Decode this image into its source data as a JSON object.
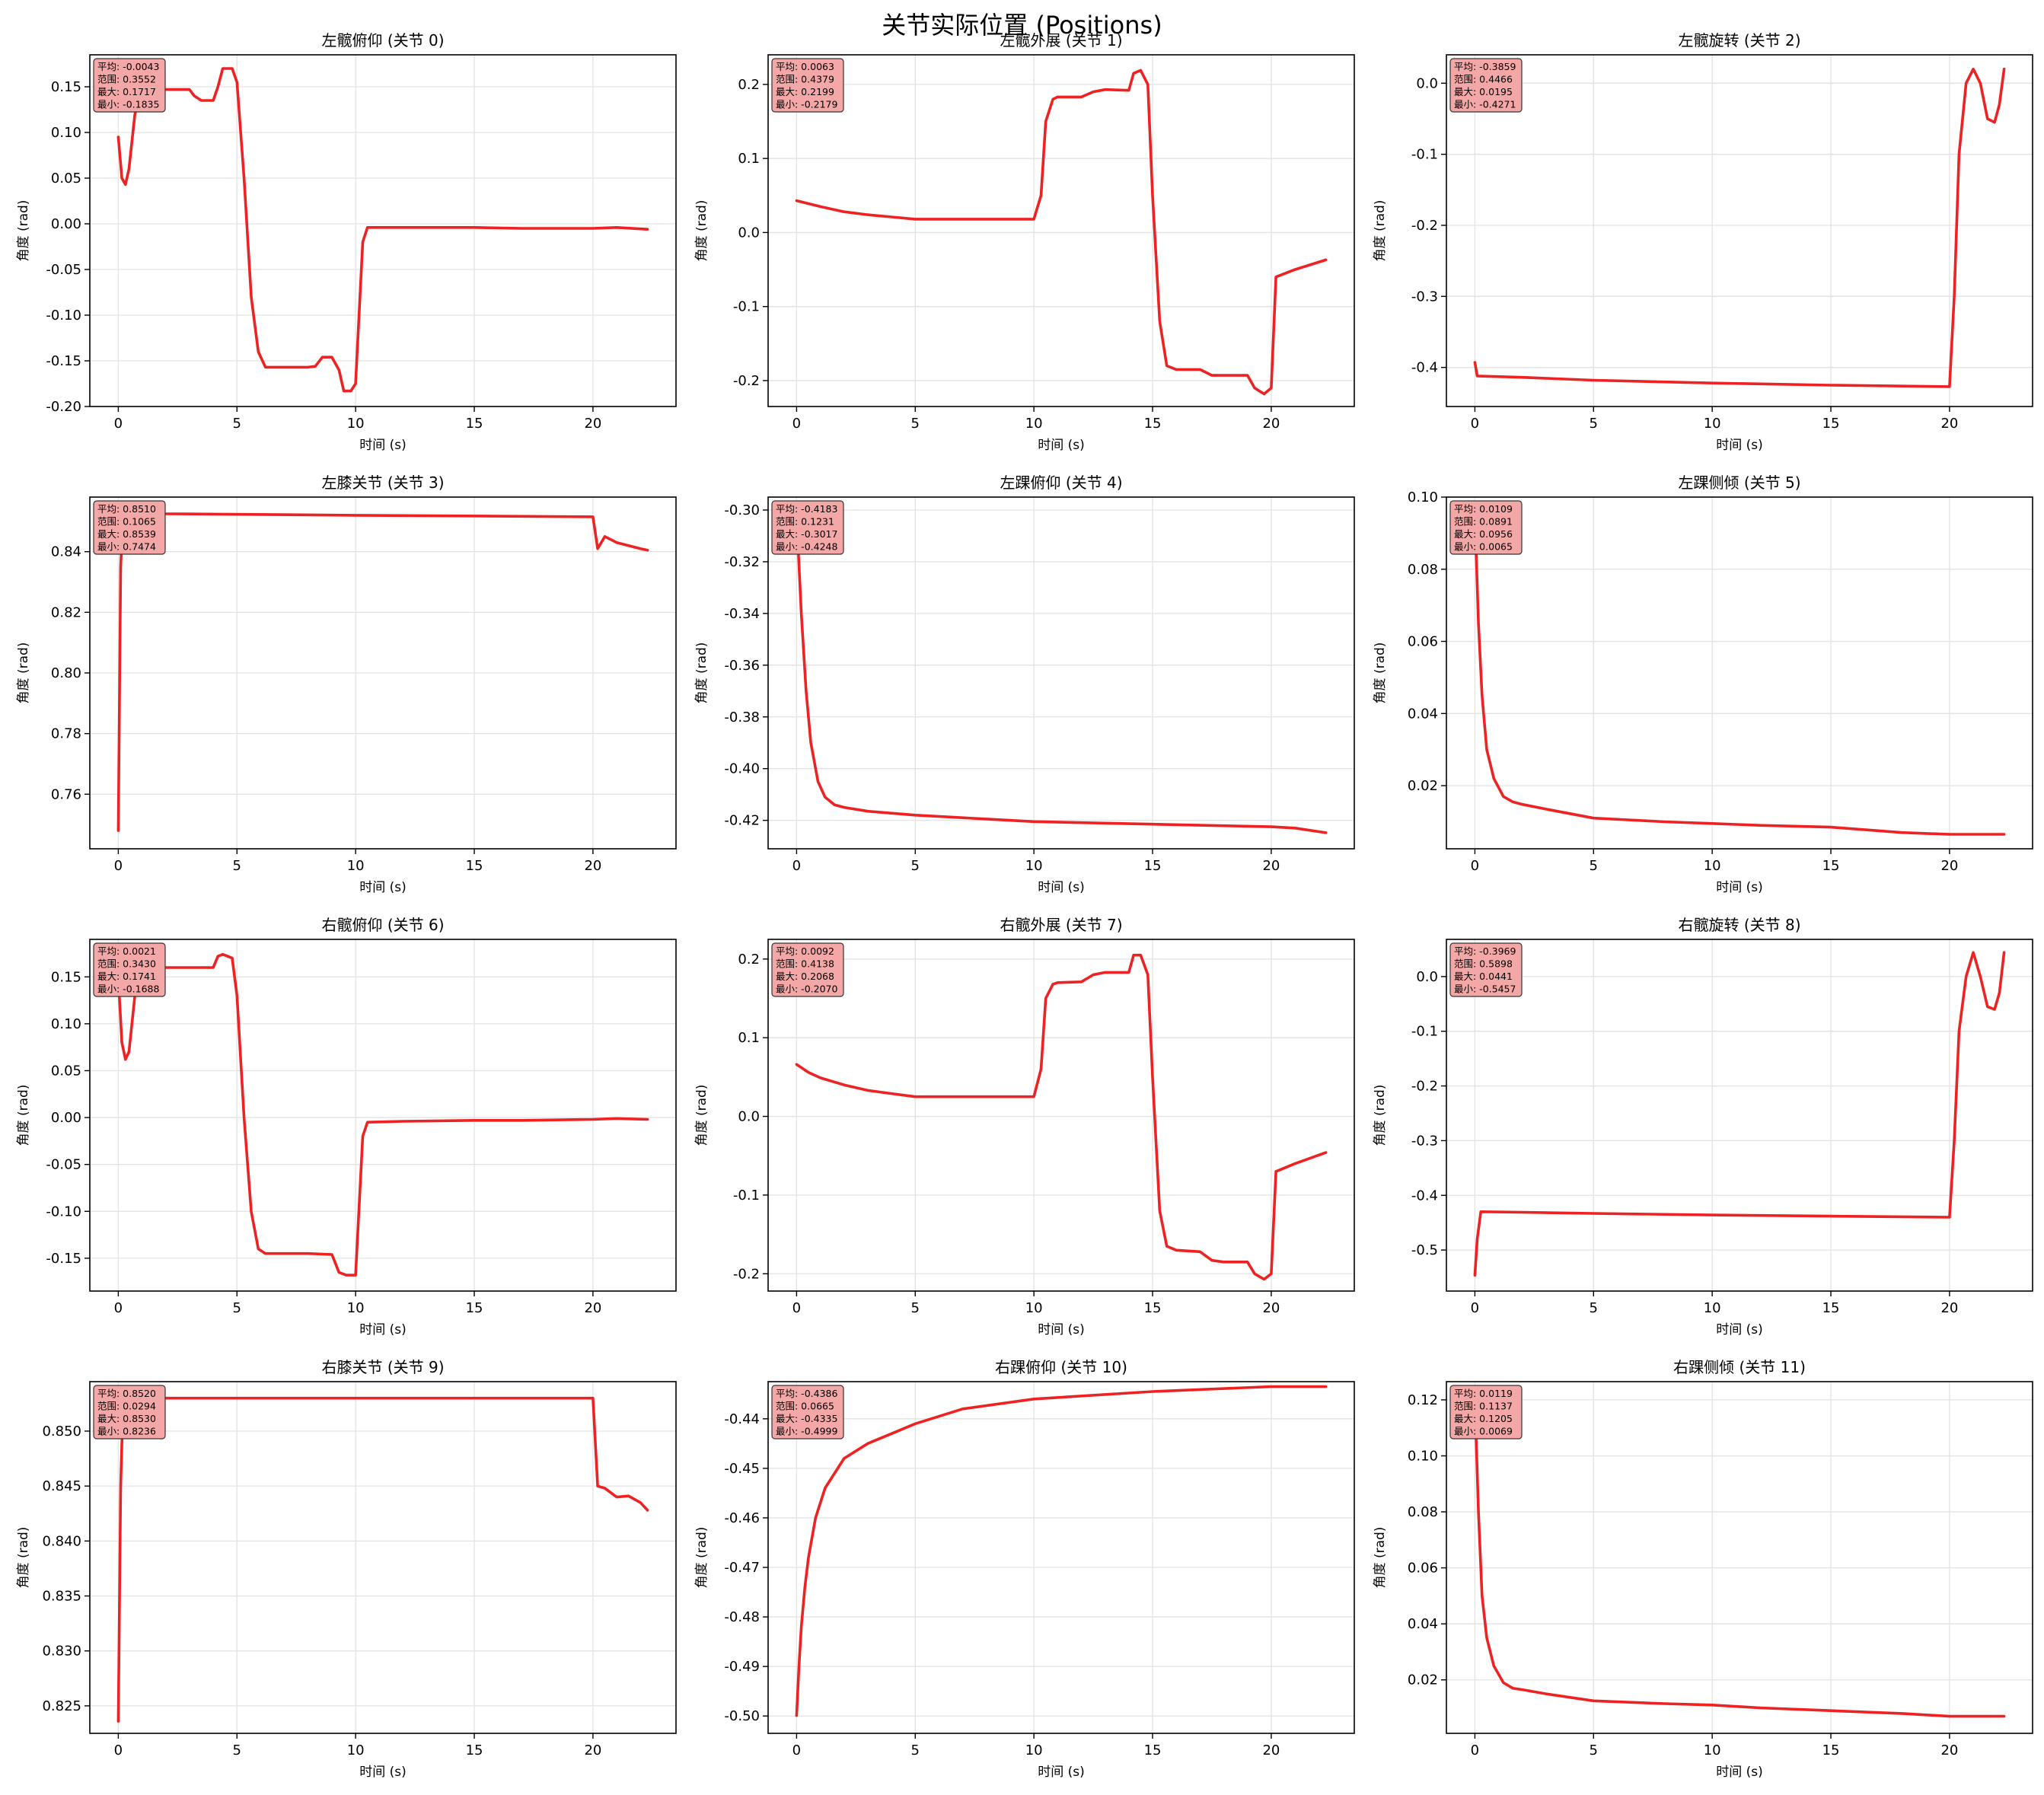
{
  "suptitle": "关节实际位置 (Positions)",
  "colors": {
    "line": "#ee2222",
    "stats_box": "#f4a7a7",
    "grid": "#e3e3e3"
  },
  "chart_data": [
    {
      "type": "line",
      "title": "左髋俯仰 (关节 0)",
      "xlabel": "时间 (s)",
      "ylabel": "角度 (rad)",
      "xlim": [
        -1.2,
        23.5
      ],
      "ylim": [
        -0.2,
        0.185
      ],
      "xticks": [
        0,
        5,
        10,
        15,
        20
      ],
      "xtick_labels": [
        "0",
        "5",
        "10",
        "15",
        "20"
      ],
      "yticks": [
        -0.2,
        -0.15,
        -0.1,
        -0.05,
        0,
        0.05,
        0.1,
        0.15
      ],
      "ytick_labels": [
        "-0.20",
        "-0.15",
        "-0.10",
        "-0.05",
        "0.00",
        "0.05",
        "0.10",
        "0.15"
      ],
      "stats": [
        "平均: -0.0043",
        "范围: 0.3552",
        "最大: 0.1717",
        "最小: -0.1835"
      ],
      "x": [
        0,
        0.15,
        0.3,
        0.45,
        0.7,
        1,
        1.5,
        2,
        2.5,
        3,
        3.2,
        3.5,
        4,
        4.2,
        4.4,
        4.8,
        5,
        5.3,
        5.6,
        5.9,
        6.2,
        7,
        8,
        8.3,
        8.6,
        9,
        9.3,
        9.5,
        9.8,
        10,
        10.3,
        10.5,
        12,
        15,
        17,
        20,
        21,
        22.3
      ],
      "y": [
        0.095,
        0.05,
        0.043,
        0.06,
        0.12,
        0.145,
        0.146,
        0.147,
        0.147,
        0.147,
        0.14,
        0.135,
        0.135,
        0.15,
        0.17,
        0.17,
        0.155,
        0.05,
        -0.08,
        -0.14,
        -0.157,
        -0.157,
        -0.157,
        -0.156,
        -0.146,
        -0.146,
        -0.16,
        -0.183,
        -0.183,
        -0.175,
        -0.02,
        -0.004,
        -0.004,
        -0.004,
        -0.005,
        -0.005,
        -0.004,
        -0.006
      ]
    },
    {
      "type": "line",
      "title": "左髋外展 (关节 1)",
      "xlabel": "时间 (s)",
      "ylabel": "角度 (rad)",
      "xlim": [
        -1.2,
        23.5
      ],
      "ylim": [
        -0.235,
        0.24
      ],
      "xticks": [
        0,
        5,
        10,
        15,
        20
      ],
      "xtick_labels": [
        "0",
        "5",
        "10",
        "15",
        "20"
      ],
      "yticks": [
        -0.2,
        -0.1,
        0,
        0.1,
        0.2
      ],
      "ytick_labels": [
        "-0.2",
        "-0.1",
        "0.0",
        "0.1",
        "0.2"
      ],
      "stats": [
        "平均: 0.0063",
        "范围: 0.4379",
        "最大: 0.2199",
        "最小: -0.2179"
      ],
      "x": [
        0,
        1,
        2,
        3,
        4,
        5,
        6,
        8,
        10,
        10.3,
        10.5,
        10.8,
        11,
        12,
        12.5,
        13,
        14,
        14.2,
        14.5,
        14.8,
        15,
        15.3,
        15.6,
        16,
        17,
        17.5,
        18,
        19,
        19.3,
        19.7,
        20,
        20.2,
        21,
        22.3
      ],
      "y": [
        0.043,
        0.035,
        0.028,
        0.024,
        0.021,
        0.018,
        0.018,
        0.018,
        0.018,
        0.05,
        0.15,
        0.18,
        0.183,
        0.183,
        0.19,
        0.193,
        0.192,
        0.215,
        0.219,
        0.2,
        0.05,
        -0.12,
        -0.18,
        -0.185,
        -0.185,
        -0.193,
        -0.193,
        -0.193,
        -0.21,
        -0.218,
        -0.21,
        -0.06,
        -0.05,
        -0.037
      ]
    },
    {
      "type": "line",
      "title": "左髋旋转 (关节 2)",
      "xlabel": "时间 (s)",
      "ylabel": "角度 (rad)",
      "xlim": [
        -1.2,
        23.5
      ],
      "ylim": [
        -0.455,
        0.04
      ],
      "xticks": [
        0,
        5,
        10,
        15,
        20
      ],
      "xtick_labels": [
        "0",
        "5",
        "10",
        "15",
        "20"
      ],
      "yticks": [
        -0.4,
        -0.3,
        -0.2,
        -0.1,
        0
      ],
      "ytick_labels": [
        "-0.4",
        "-0.3",
        "-0.2",
        "-0.1",
        "0.0"
      ],
      "stats": [
        "平均: -0.3859",
        "范围: 0.4466",
        "最大: 0.0195",
        "最小: -0.4271"
      ],
      "x": [
        0,
        0.1,
        2,
        5,
        10,
        15,
        20,
        20.2,
        20.4,
        20.7,
        21,
        21.3,
        21.6,
        21.9,
        22.1,
        22.3
      ],
      "y": [
        -0.393,
        -0.412,
        -0.414,
        -0.418,
        -0.422,
        -0.425,
        -0.427,
        -0.3,
        -0.1,
        0.0,
        0.02,
        0.0,
        -0.05,
        -0.055,
        -0.03,
        0.02
      ]
    },
    {
      "type": "line",
      "title": "左膝关节 (关节 3)",
      "xlabel": "时间 (s)",
      "ylabel": "角度 (rad)",
      "xlim": [
        -1.2,
        23.5
      ],
      "ylim": [
        0.742,
        0.858
      ],
      "xticks": [
        0,
        5,
        10,
        15,
        20
      ],
      "xtick_labels": [
        "0",
        "5",
        "10",
        "15",
        "20"
      ],
      "yticks": [
        0.76,
        0.78,
        0.8,
        0.82,
        0.84
      ],
      "ytick_labels": [
        "0.76",
        "0.78",
        "0.80",
        "0.82",
        "0.84"
      ],
      "stats": [
        "平均: 0.8510",
        "范围: 0.1065",
        "最大: 0.8539",
        "最小: 0.7474"
      ],
      "x": [
        0,
        0.1,
        0.2,
        0.4,
        2,
        10,
        20,
        20.2,
        20.5,
        21,
        21.5,
        22,
        22.3
      ],
      "y": [
        0.748,
        0.835,
        0.852,
        0.853,
        0.8525,
        0.852,
        0.8515,
        0.841,
        0.845,
        0.843,
        0.842,
        0.841,
        0.8405
      ]
    },
    {
      "type": "line",
      "title": "左踝俯仰 (关节 4)",
      "xlabel": "时间 (s)",
      "ylabel": "角度 (rad)",
      "xlim": [
        -1.2,
        23.5
      ],
      "ylim": [
        -0.431,
        -0.295
      ],
      "xticks": [
        0,
        5,
        10,
        15,
        20
      ],
      "xtick_labels": [
        "0",
        "5",
        "10",
        "15",
        "20"
      ],
      "yticks": [
        -0.42,
        -0.4,
        -0.38,
        -0.36,
        -0.34,
        -0.32,
        -0.3
      ],
      "ytick_labels": [
        "-0.42",
        "-0.40",
        "-0.38",
        "-0.36",
        "-0.34",
        "-0.32",
        "-0.30"
      ],
      "stats": [
        "平均: -0.4183",
        "范围: 0.1231",
        "最大: -0.3017",
        "最小: -0.4248"
      ],
      "x": [
        0,
        0.2,
        0.4,
        0.6,
        0.9,
        1.2,
        1.6,
        2,
        3,
        5,
        8,
        10,
        15,
        20,
        21,
        22.3
      ],
      "y": [
        -0.302,
        -0.34,
        -0.37,
        -0.39,
        -0.405,
        -0.411,
        -0.414,
        -0.415,
        -0.4165,
        -0.418,
        -0.4195,
        -0.4205,
        -0.4215,
        -0.4225,
        -0.423,
        -0.4248
      ]
    },
    {
      "type": "line",
      "title": "左踝侧倾 (关节 5)",
      "xlabel": "时间 (s)",
      "ylabel": "角度 (rad)",
      "xlim": [
        -1.2,
        23.5
      ],
      "ylim": [
        0.0025,
        0.1
      ],
      "xticks": [
        0,
        5,
        10,
        15,
        20
      ],
      "xtick_labels": [
        "0",
        "5",
        "10",
        "15",
        "20"
      ],
      "yticks": [
        0.02,
        0.04,
        0.06,
        0.08,
        0.1
      ],
      "ytick_labels": [
        "0.02",
        "0.04",
        "0.06",
        "0.08",
        "0.10"
      ],
      "stats": [
        "平均: 0.0109",
        "范围: 0.0891",
        "最大: 0.0956",
        "最小: 0.0065"
      ],
      "x": [
        0,
        0.15,
        0.3,
        0.5,
        0.8,
        1.2,
        1.6,
        2,
        3,
        5,
        8,
        10,
        12,
        15,
        18,
        20,
        22.3
      ],
      "y": [
        0.0956,
        0.065,
        0.045,
        0.03,
        0.022,
        0.017,
        0.0155,
        0.0148,
        0.0135,
        0.011,
        0.01,
        0.0095,
        0.009,
        0.0085,
        0.007,
        0.0065,
        0.0065
      ]
    },
    {
      "type": "line",
      "title": "右髋俯仰 (关节 6)",
      "xlabel": "时间 (s)",
      "ylabel": "角度 (rad)",
      "xlim": [
        -1.2,
        23.5
      ],
      "ylim": [
        -0.185,
        0.19
      ],
      "xticks": [
        0,
        5,
        10,
        15,
        20
      ],
      "xtick_labels": [
        "0",
        "5",
        "10",
        "15",
        "20"
      ],
      "yticks": [
        -0.15,
        -0.1,
        -0.05,
        0,
        0.05,
        0.1,
        0.15
      ],
      "ytick_labels": [
        "-0.15",
        "-0.10",
        "-0.05",
        "0.00",
        "0.05",
        "0.10",
        "0.15"
      ],
      "stats": [
        "平均: 0.0021",
        "范围: 0.3430",
        "最大: 0.1741",
        "最小: -0.1688"
      ],
      "x": [
        0,
        0.15,
        0.3,
        0.45,
        0.7,
        1,
        1.5,
        2,
        3,
        4,
        4.2,
        4.4,
        4.8,
        5,
        5.3,
        5.6,
        5.9,
        6.2,
        7,
        8,
        9,
        9.3,
        9.6,
        10,
        10.3,
        10.5,
        12,
        15,
        17,
        20,
        21,
        22.3
      ],
      "y": [
        0.15,
        0.08,
        0.062,
        0.07,
        0.13,
        0.158,
        0.16,
        0.16,
        0.16,
        0.16,
        0.172,
        0.174,
        0.17,
        0.13,
        0.0,
        -0.1,
        -0.14,
        -0.145,
        -0.145,
        -0.145,
        -0.146,
        -0.165,
        -0.168,
        -0.168,
        -0.02,
        -0.005,
        -0.004,
        -0.003,
        -0.003,
        -0.002,
        -0.001,
        -0.002
      ]
    },
    {
      "type": "line",
      "title": "右髋外展 (关节 7)",
      "xlabel": "时间 (s)",
      "ylabel": "角度 (rad)",
      "xlim": [
        -1.2,
        23.5
      ],
      "ylim": [
        -0.222,
        0.225
      ],
      "xticks": [
        0,
        5,
        10,
        15,
        20
      ],
      "xtick_labels": [
        "0",
        "5",
        "10",
        "15",
        "20"
      ],
      "yticks": [
        -0.2,
        -0.1,
        0,
        0.1,
        0.2
      ],
      "ytick_labels": [
        "-0.2",
        "-0.1",
        "0.0",
        "0.1",
        "0.2"
      ],
      "stats": [
        "平均: 0.0092",
        "范围: 0.4138",
        "最大: 0.2068",
        "最小: -0.2070"
      ],
      "x": [
        0,
        0.5,
        1,
        2,
        3,
        4,
        5,
        7,
        10,
        10.3,
        10.5,
        10.8,
        11,
        12,
        12.5,
        13,
        14,
        14.2,
        14.5,
        14.8,
        15,
        15.3,
        15.6,
        16,
        17,
        17.5,
        18,
        19,
        19.3,
        19.7,
        20,
        20.2,
        21,
        22.3
      ],
      "y": [
        0.066,
        0.056,
        0.049,
        0.04,
        0.033,
        0.029,
        0.025,
        0.025,
        0.025,
        0.06,
        0.15,
        0.168,
        0.17,
        0.171,
        0.18,
        0.183,
        0.183,
        0.205,
        0.205,
        0.18,
        0.05,
        -0.12,
        -0.165,
        -0.17,
        -0.172,
        -0.183,
        -0.185,
        -0.185,
        -0.2,
        -0.207,
        -0.2,
        -0.07,
        -0.06,
        -0.046
      ]
    },
    {
      "type": "line",
      "title": "右髋旋转 (关节 8)",
      "xlabel": "时间 (s)",
      "ylabel": "角度 (rad)",
      "xlim": [
        -1.2,
        23.5
      ],
      "ylim": [
        -0.575,
        0.068
      ],
      "xticks": [
        0,
        5,
        10,
        15,
        20
      ],
      "xtick_labels": [
        "0",
        "5",
        "10",
        "15",
        "20"
      ],
      "yticks": [
        -0.5,
        -0.4,
        -0.3,
        -0.2,
        -0.1,
        0
      ],
      "ytick_labels": [
        "-0.5",
        "-0.4",
        "-0.3",
        "-0.2",
        "-0.1",
        "0.0"
      ],
      "stats": [
        "平均: -0.3969",
        "范围: 0.5898",
        "最大: 0.0441",
        "最小: -0.5457"
      ],
      "x": [
        0,
        0.1,
        0.25,
        2,
        5,
        10,
        15,
        20,
        20.2,
        20.4,
        20.7,
        21,
        21.3,
        21.6,
        21.9,
        22.1,
        22.3
      ],
      "y": [
        -0.546,
        -0.48,
        -0.43,
        -0.431,
        -0.433,
        -0.436,
        -0.438,
        -0.44,
        -0.3,
        -0.1,
        0.0,
        0.044,
        0.0,
        -0.055,
        -0.06,
        -0.03,
        0.044
      ]
    },
    {
      "type": "line",
      "title": "右膝关节 (关节 9)",
      "xlabel": "时间 (s)",
      "ylabel": "角度 (rad)",
      "xlim": [
        -1.2,
        23.5
      ],
      "ylim": [
        0.8225,
        0.8545
      ],
      "xticks": [
        0,
        5,
        10,
        15,
        20
      ],
      "xtick_labels": [
        "0",
        "5",
        "10",
        "15",
        "20"
      ],
      "yticks": [
        0.825,
        0.83,
        0.835,
        0.84,
        0.845,
        0.85
      ],
      "ytick_labels": [
        "0.825",
        "0.830",
        "0.835",
        "0.840",
        "0.845",
        "0.850"
      ],
      "stats": [
        "平均: 0.8520",
        "范围: 0.0294",
        "最大: 0.8530",
        "最小: 0.8236"
      ],
      "x": [
        0,
        0.1,
        0.2,
        0.4,
        2,
        10,
        20,
        20.2,
        20.5,
        21,
        21.5,
        22,
        22.3
      ],
      "y": [
        0.8236,
        0.845,
        0.8525,
        0.8528,
        0.853,
        0.853,
        0.853,
        0.845,
        0.8448,
        0.844,
        0.8441,
        0.8435,
        0.8428
      ]
    },
    {
      "type": "line",
      "title": "右踝俯仰 (关节 10)",
      "xlabel": "时间 (s)",
      "ylabel": "角度 (rad)",
      "xlim": [
        -1.2,
        23.5
      ],
      "ylim": [
        -0.5035,
        -0.4325
      ],
      "xticks": [
        0,
        5,
        10,
        15,
        20
      ],
      "xtick_labels": [
        "0",
        "5",
        "10",
        "15",
        "20"
      ],
      "yticks": [
        -0.5,
        -0.49,
        -0.48,
        -0.47,
        -0.46,
        -0.45,
        -0.44
      ],
      "ytick_labels": [
        "-0.50",
        "-0.49",
        "-0.48",
        "-0.47",
        "-0.46",
        "-0.45",
        "-0.44"
      ],
      "stats": [
        "平均: -0.4386",
        "范围: 0.0665",
        "最大: -0.4335",
        "最小: -0.4999"
      ],
      "x": [
        0,
        0.1,
        0.2,
        0.35,
        0.5,
        0.8,
        1.2,
        1.6,
        2,
        3,
        4,
        5,
        7,
        10,
        15,
        20,
        22.3
      ],
      "y": [
        -0.4999,
        -0.49,
        -0.482,
        -0.474,
        -0.468,
        -0.46,
        -0.454,
        -0.451,
        -0.448,
        -0.445,
        -0.443,
        -0.441,
        -0.438,
        -0.436,
        -0.4345,
        -0.4335,
        -0.4335
      ]
    },
    {
      "type": "line",
      "title": "右踝侧倾 (关节 11)",
      "xlabel": "时间 (s)",
      "ylabel": "角度 (rad)",
      "xlim": [
        -1.2,
        23.5
      ],
      "ylim": [
        0.0009,
        0.1265
      ],
      "xticks": [
        0,
        5,
        10,
        15,
        20
      ],
      "xtick_labels": [
        "0",
        "5",
        "10",
        "15",
        "20"
      ],
      "yticks": [
        0.02,
        0.04,
        0.06,
        0.08,
        0.1,
        0.12
      ],
      "ytick_labels": [
        "0.02",
        "0.04",
        "0.06",
        "0.08",
        "0.10",
        "0.12"
      ],
      "stats": [
        "平均: 0.0119",
        "范围: 0.1137",
        "最大: 0.1205",
        "最小: 0.0069"
      ],
      "x": [
        0,
        0.15,
        0.3,
        0.5,
        0.8,
        1.2,
        1.6,
        2,
        3,
        5,
        8,
        10,
        12,
        15,
        18,
        20,
        22.3
      ],
      "y": [
        0.1205,
        0.08,
        0.05,
        0.035,
        0.025,
        0.019,
        0.017,
        0.0165,
        0.015,
        0.0125,
        0.0115,
        0.011,
        0.01,
        0.009,
        0.008,
        0.007,
        0.007
      ]
    }
  ]
}
